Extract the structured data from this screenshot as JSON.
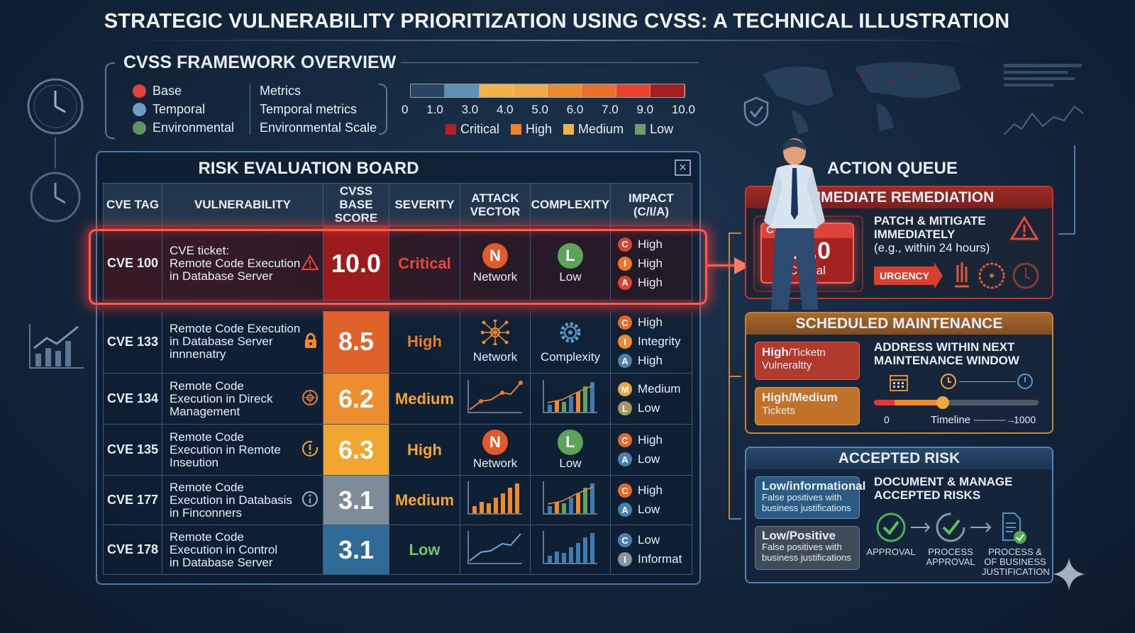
{
  "title": "STRATEGIC VULNERABILITY PRIORITIZATION USING CVSS: A TECHNICAL ILLUSTRATION",
  "overview": {
    "heading": "CVSS FRAMEWORK OVERVIEW",
    "legend": [
      {
        "label": "Base",
        "color": "#e5413a"
      },
      {
        "label": "Temporal",
        "color": "#6f9cc0"
      },
      {
        "label": "Environmental",
        "color": "#5e9560"
      }
    ],
    "metrics": [
      "Metrics",
      "Temporal metrics",
      "Environmental Scale"
    ],
    "scale_ticks": [
      "0",
      "1.0",
      "3.0",
      "4.0",
      "5.0",
      "6.0",
      "7.0",
      "9.0",
      "10.0"
    ],
    "scale_colors": [
      "#2b4663",
      "#5f8fb2",
      "#f2b24c",
      "#f2aa48",
      "#ee8a2e",
      "#ea7129",
      "#e8432f",
      "#a51e1f"
    ],
    "severity_legend": [
      {
        "label": "Critical",
        "color": "#b52020"
      },
      {
        "label": "High",
        "color": "#ee8229"
      },
      {
        "label": "Medium",
        "color": "#f1b049"
      },
      {
        "label": "Low",
        "color": "#6d9d6f"
      }
    ]
  },
  "board": {
    "title": "RISK EVALUATION BOARD",
    "headers": [
      "CVE TAG",
      "VULNERABILITY",
      "CVSS BASE\nSCORE",
      "SEVERITY",
      "ATTACK\nVECTOR",
      "COMPLEXITY",
      "IMPACT\n(C/I/A)"
    ],
    "rows": [
      {
        "tag": "CVE 100",
        "vuln": "CVE ticket:\nRemote Code Execution\nin Database Server",
        "icon": "warning-icon",
        "score": "10.0",
        "score_color": "#9c1b1c",
        "severity": "Critical",
        "severity_color": "#e8493a",
        "attack": {
          "type": "letter",
          "letter": "N",
          "color": "#e2592a",
          "label": "Network"
        },
        "complexity": {
          "type": "letter",
          "letter": "L",
          "color": "#5aa55a",
          "label": "Low"
        },
        "impact": [
          {
            "letter": "C",
            "label": "High",
            "color": "#d9432f"
          },
          {
            "letter": "I",
            "label": "High",
            "color": "#e8782a"
          },
          {
            "letter": "A",
            "label": "High",
            "color": "#d9432f"
          }
        ]
      },
      {
        "tag": "CVE 133",
        "vuln": "Remote Code Execution\nin Database Server\ninnnenatry",
        "icon": "lock-icon",
        "score": "8.5",
        "score_color": "#e0622b",
        "severity": "High",
        "severity_color": "#f07a25",
        "attack": {
          "type": "network",
          "label": "Network"
        },
        "complexity": {
          "type": "gear",
          "label": "Complexity"
        },
        "impact": [
          {
            "letter": "C",
            "label": "High",
            "color": "#e8692a"
          },
          {
            "letter": "I",
            "label": "Integrity",
            "color": "#ef8a2e"
          },
          {
            "letter": "A",
            "label": "High",
            "color": "#4b7fae"
          }
        ]
      },
      {
        "tag": "CVE 134",
        "vuln": "Remote Code\nExecution in Direck\nManagement",
        "icon": "target-icon",
        "score": "6.2",
        "score_color": "#ec8d30",
        "severity": "Medium",
        "severity_color": "#f2a531",
        "attack": {
          "type": "line"
        },
        "complexity": {
          "type": "bars"
        },
        "impact": [
          {
            "letter": "M",
            "label": "Medium",
            "color": "#eea340"
          },
          {
            "letter": "L",
            "label": "Low",
            "color": "#a89660"
          }
        ]
      },
      {
        "tag": "CVE 135",
        "vuln": "Remote Code\nExecution in Remote\nInseution",
        "icon": "alert-icon",
        "score": "6.3",
        "score_color": "#f0a62f",
        "severity": "High",
        "severity_color": "#f2a531",
        "attack": {
          "type": "letter",
          "letter": "N",
          "color": "#e2592a",
          "label": "Network"
        },
        "complexity": {
          "type": "letter",
          "letter": "L",
          "color": "#5aa55a",
          "label": "Low"
        },
        "impact": [
          {
            "letter": "C",
            "label": "High",
            "color": "#e8692a"
          },
          {
            "letter": "A",
            "label": "Low",
            "color": "#4b7fae"
          }
        ]
      },
      {
        "tag": "CVE 177",
        "vuln": "Remote Code\nExecution in Databasis\nin Finconners",
        "icon": "info-icon",
        "score": "3.1",
        "score_color": "#7d8c98",
        "severity": "Medium",
        "severity_color": "#f2a531",
        "attack": {
          "type": "bars-orange"
        },
        "complexity": {
          "type": "bars"
        },
        "impact": [
          {
            "letter": "C",
            "label": "High",
            "color": "#e8692a"
          },
          {
            "letter": "A",
            "label": "Low",
            "color": "#4b7fae"
          }
        ]
      },
      {
        "tag": "CVE 178",
        "vuln": "Remote Code\nExecution in Control\nin Database Server",
        "icon": "none",
        "score": "3.1",
        "score_color": "#2e6b97",
        "severity": "Low",
        "severity_color": "#74c46c",
        "attack": {
          "type": "line-blue"
        },
        "complexity": {
          "type": "bars-blue"
        },
        "impact": [
          {
            "letter": "C",
            "label": "Low",
            "color": "#4b7fae"
          },
          {
            "letter": "I",
            "label": "Informat",
            "color": "#8a949c"
          }
        ]
      }
    ]
  },
  "queue": {
    "title": "ACTION QUEUE",
    "immediate": {
      "heading": "IMMEDIATE REMEDIATION",
      "card_tag": "CVE",
      "card_score": "10.0",
      "card_label": "Critical",
      "text_bold": "PATCH & MITIGATE\nIMMEDIATELY",
      "text": "(e.g., within 24 hours)",
      "urgency": "URGENCY"
    },
    "scheduled": {
      "heading": "SCHEDULED MAINTENANCE",
      "pill1_bold": "High",
      "pill1_rest": "/Ticketn\nVulneraltty",
      "pill2_bold": "High/Medium",
      "pill2_rest": "Tickets",
      "text_bold": "ADDRESS WITHIN NEXT\nMAINTENANCE WINDOW",
      "timeline_start": "0",
      "timeline_label": "Timeline",
      "timeline_end": "1000",
      "timeline_progress": 0.42
    },
    "accepted": {
      "heading": "ACCEPTED RISK",
      "pill1_bold": "Low/informational",
      "pill1_rest": "False positives with\nbusiness justifications",
      "pill2_bold": "Low/Positive",
      "pill2_rest": "False positives with\nbusiness justifications",
      "text_bold": "DOCUMENT & MANAGE\nACCEPTED RISKS",
      "steps": [
        "APPROVAL",
        "PROCESS\nAPPROVAL",
        "PROCESS &\nOF BUSINESS\nJUSTIFICATION"
      ]
    }
  }
}
